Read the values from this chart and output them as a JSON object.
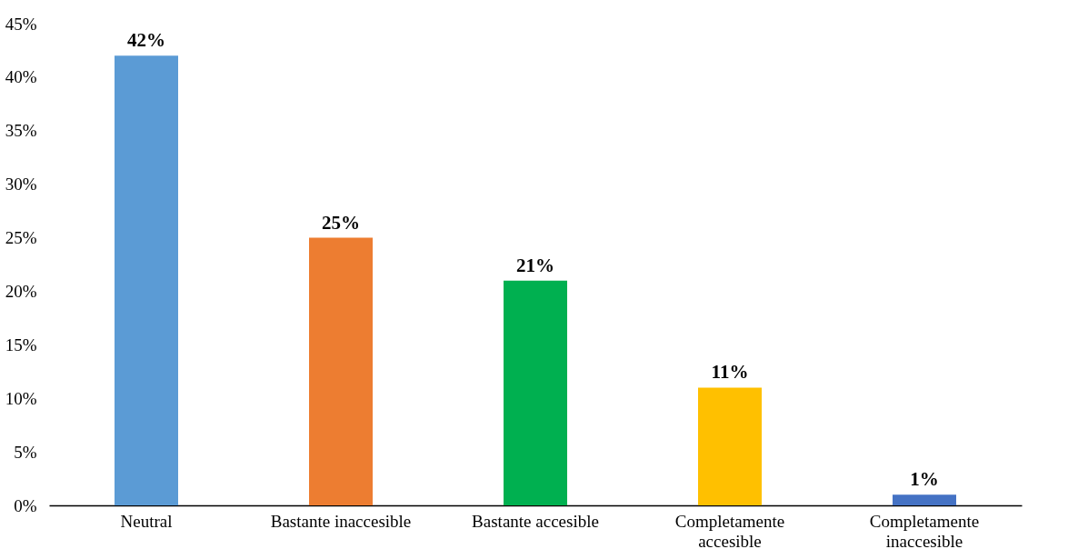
{
  "chart_data": {
    "type": "bar",
    "categories": [
      "Neutral",
      "Bastante inaccesible",
      "Bastante accesible",
      "Completamente accesible",
      "Completamente inaccesible"
    ],
    "values": [
      42,
      25,
      21,
      11,
      1
    ],
    "colors": [
      "#5b9bd5",
      "#ed7d31",
      "#00b050",
      "#ffc000",
      "#4472c4"
    ],
    "value_labels": [
      "42%",
      "25%",
      "21%",
      "11%",
      "1%"
    ],
    "ylim": [
      0,
      45
    ],
    "yticks": [
      {
        "value": 0,
        "label": "0%"
      },
      {
        "value": 5,
        "label": "5%"
      },
      {
        "value": 10,
        "label": "10%"
      },
      {
        "value": 15,
        "label": "15%"
      },
      {
        "value": 20,
        "label": "20%"
      },
      {
        "value": 25,
        "label": "25%"
      },
      {
        "value": 30,
        "label": "30%"
      },
      {
        "value": 35,
        "label": "35%"
      },
      {
        "value": 40,
        "label": "40%"
      },
      {
        "value": 45,
        "label": "45%"
      }
    ],
    "grid": false
  }
}
